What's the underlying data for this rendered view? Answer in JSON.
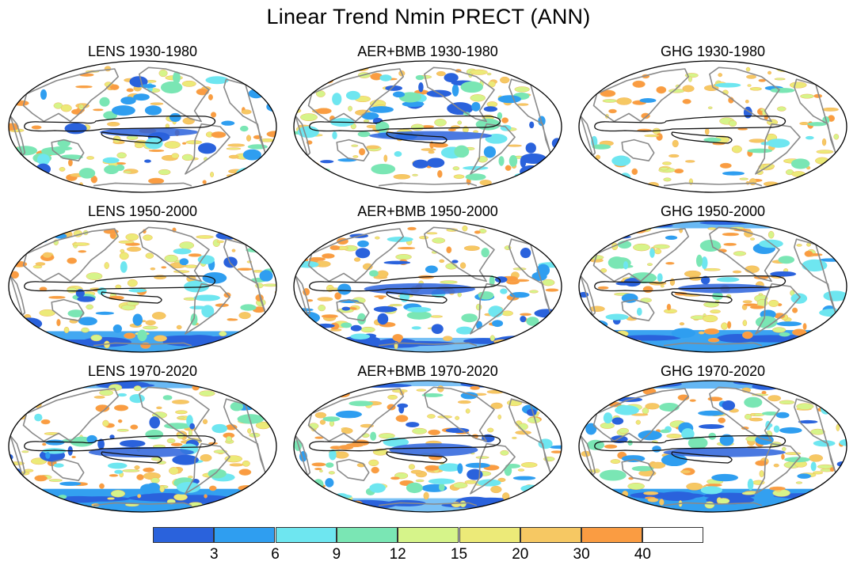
{
  "title": "Linear Trend Nmin PRECT (ANN)",
  "panels": [
    {
      "title": "LENS 1930-1980",
      "blue": 0.5,
      "warm": 0.55,
      "south": 0.0,
      "north": 0.05,
      "seed": 11
    },
    {
      "title": "AER+BMB 1930-1980",
      "blue": 0.95,
      "warm": 0.55,
      "south": 0.0,
      "north": 0.05,
      "seed": 23
    },
    {
      "title": "GHG 1930-1980",
      "blue": 0.15,
      "warm": 0.6,
      "south": 0.0,
      "north": 0.05,
      "seed": 37
    },
    {
      "title": "LENS 1950-2000",
      "blue": 0.45,
      "warm": 0.55,
      "south": 0.75,
      "north": 0.05,
      "seed": 41
    },
    {
      "title": "AER+BMB 1950-2000",
      "blue": 0.7,
      "warm": 0.55,
      "south": 0.15,
      "north": 0.05,
      "seed": 53
    },
    {
      "title": "GHG 1950-2000",
      "blue": 0.6,
      "warm": 0.6,
      "south": 0.85,
      "north": 0.55,
      "seed": 67
    },
    {
      "title": "LENS 1970-2020",
      "blue": 0.6,
      "warm": 0.6,
      "south": 0.95,
      "north": 0.55,
      "seed": 71
    },
    {
      "title": "AER+BMB 1970-2020",
      "blue": 0.55,
      "warm": 0.6,
      "south": 0.1,
      "north": 0.3,
      "seed": 83
    },
    {
      "title": "GHG 1970-2020",
      "blue": 0.65,
      "warm": 0.6,
      "south": 0.95,
      "north": 0.6,
      "seed": 97
    }
  ],
  "colorbar": {
    "colors": [
      "#2a62dc",
      "#2f9ef0",
      "#6ee6f0",
      "#7ae6b4",
      "#d6f48a",
      "#ecea78",
      "#f6c863",
      "#fa9c42",
      "#ffffff"
    ],
    "labels": [
      "3",
      "6",
      "9",
      "12",
      "15",
      "20",
      "30",
      "40"
    ]
  }
}
